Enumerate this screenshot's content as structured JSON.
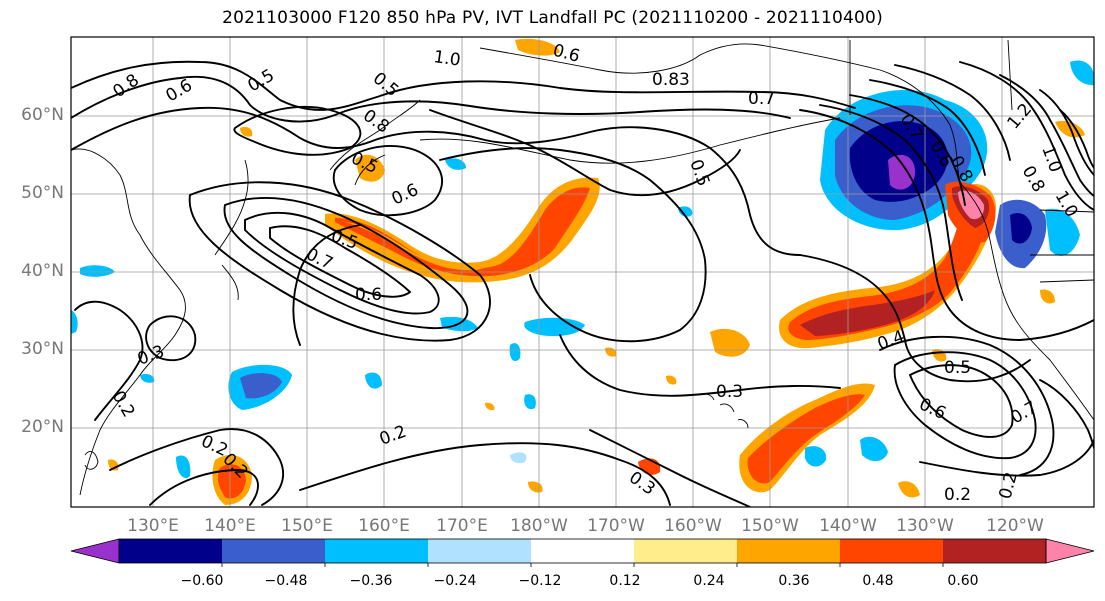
{
  "title": "2021103000 F120 850 hPa PV, IVT Landfall PC (2021110200 - 2021110400)",
  "lat_labels": [
    "60°N",
    "50°N",
    "40°N",
    "30°N",
    "20°N"
  ],
  "lon_labels": [
    "130°E",
    "140°E",
    "150°E",
    "160°E",
    "170°E",
    "180°W",
    "170°W",
    "160°W",
    "150°W",
    "140°W",
    "130°W",
    "120°W"
  ],
  "colorbar": {
    "labels": [
      "−0.60",
      "−0.48",
      "−0.36",
      "−0.24",
      "−0.12",
      "0.12",
      "0.24",
      "0.36",
      "0.48",
      "0.60"
    ],
    "colors": [
      "#9932cc",
      "#00008b",
      "#3a5fcd",
      "#00bfff",
      "#b0e2ff",
      "#ffffff",
      "#ffec8b",
      "#ffa500",
      "#ff4500",
      "#b22222",
      "#ff82ab"
    ]
  },
  "contour_labels": [
    "1.0",
    "0.8",
    "0.6",
    "0.5",
    "0.5",
    "0.6",
    "0.8",
    "0.83",
    "0.7",
    "0.5",
    "0.6",
    "0.5",
    "0.5",
    "0.7",
    "0.6",
    "0.3",
    "0.2",
    "0.2",
    "0.2",
    "0.3",
    "0.4",
    "0.5",
    "0.6",
    "0.7",
    "0.3",
    "0.2",
    "0.2",
    "1.2",
    "1.0",
    "0.8",
    "0.6",
    "0.7",
    "0.2",
    "1.0",
    "0.8"
  ]
}
